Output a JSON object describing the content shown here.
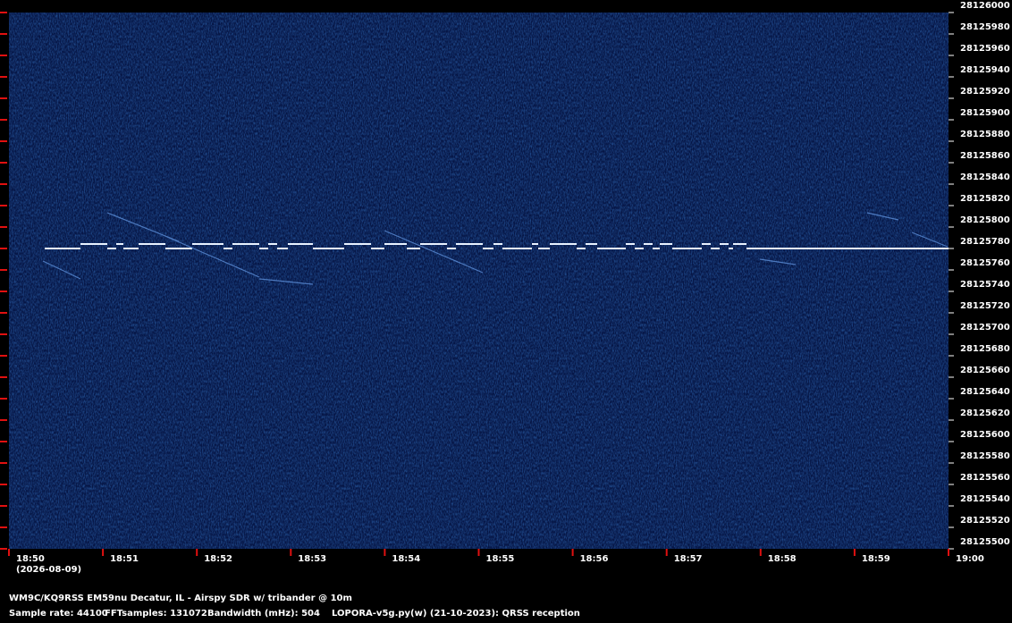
{
  "chart_data": {
    "type": "spectrogram",
    "ylim": [
      28125500,
      28126000
    ],
    "yticks": [
      28125500,
      28125520,
      28125540,
      28125560,
      28125580,
      28125600,
      28125620,
      28125640,
      28125660,
      28125680,
      28125700,
      28125720,
      28125740,
      28125760,
      28125780,
      28125800,
      28125820,
      28125840,
      28125860,
      28125880,
      28125900,
      28125920,
      28125940,
      28125960,
      28125980,
      28126000
    ],
    "x_ticks": [
      "18:50",
      "18:51",
      "18:52",
      "18:53",
      "18:54",
      "18:55",
      "18:56",
      "18:57",
      "18:58",
      "18:59",
      "19:00"
    ],
    "date": "(2026-08-09)",
    "station": "WM9C/KQ9RSS EM59nu Decatur, IL - Airspy SDR w/ tribander @ 10m",
    "settings": [
      "Sample rate: 44100",
      "FFTsamples: 131072",
      "Bandwidth (mHz): 504",
      "LOPORA-v5g.py(w) (21-10-2023): QRSS reception"
    ]
  }
}
